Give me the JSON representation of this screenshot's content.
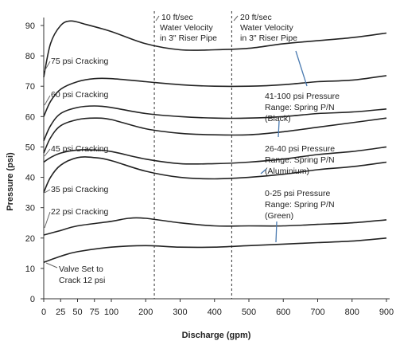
{
  "chart_data": {
    "type": "line",
    "xlabel": "Discharge (gpm)",
    "ylabel": "Pressure (psi)",
    "xlim": [
      0,
      900
    ],
    "ylim": [
      0,
      90
    ],
    "x_ticks": [
      0,
      25,
      50,
      75,
      100,
      200,
      300,
      400,
      500,
      600,
      700,
      800,
      900
    ],
    "y_ticks": [
      0,
      10,
      20,
      30,
      40,
      50,
      60,
      70,
      80,
      90
    ],
    "grid": false,
    "series": [
      {
        "name": "75 psi Cracking",
        "points": [
          [
            0,
            73
          ],
          [
            10,
            84
          ],
          [
            25,
            90
          ],
          [
            40,
            91.5
          ],
          [
            60,
            90.5
          ],
          [
            100,
            88
          ],
          [
            200,
            84
          ],
          [
            300,
            82
          ],
          [
            400,
            82
          ],
          [
            500,
            82.5
          ],
          [
            600,
            84
          ],
          [
            700,
            85
          ],
          [
            800,
            86
          ],
          [
            900,
            87.5
          ]
        ]
      },
      {
        "name": "60 psi Cracking",
        "points": [
          [
            0,
            60
          ],
          [
            10,
            65
          ],
          [
            25,
            69
          ],
          [
            50,
            71.5
          ],
          [
            75,
            72.5
          ],
          [
            100,
            72.5
          ],
          [
            200,
            71.5
          ],
          [
            300,
            70.5
          ],
          [
            400,
            70
          ],
          [
            500,
            70
          ],
          [
            600,
            70.5
          ],
          [
            700,
            71.5
          ],
          [
            800,
            72
          ],
          [
            900,
            73.5
          ]
        ]
      },
      {
        "name": "",
        "points": [
          [
            0,
            52
          ],
          [
            10,
            57
          ],
          [
            25,
            61
          ],
          [
            50,
            63
          ],
          [
            75,
            63.5
          ],
          [
            100,
            63
          ],
          [
            200,
            61
          ],
          [
            300,
            60
          ],
          [
            400,
            59.5
          ],
          [
            500,
            59.5
          ],
          [
            600,
            60
          ],
          [
            700,
            61
          ],
          [
            800,
            61.5
          ],
          [
            900,
            62.5
          ]
        ]
      },
      {
        "name": "",
        "points": [
          [
            0,
            48
          ],
          [
            10,
            53
          ],
          [
            25,
            57
          ],
          [
            50,
            59
          ],
          [
            75,
            59.5
          ],
          [
            100,
            59
          ],
          [
            200,
            56
          ],
          [
            300,
            54.5
          ],
          [
            400,
            54
          ],
          [
            500,
            54
          ],
          [
            600,
            55
          ],
          [
            700,
            56.5
          ],
          [
            800,
            58
          ],
          [
            900,
            59.5
          ]
        ]
      },
      {
        "name": "45 psi Cracking",
        "points": [
          [
            0,
            45
          ],
          [
            10,
            46.5
          ],
          [
            25,
            48
          ],
          [
            50,
            49
          ],
          [
            75,
            49
          ],
          [
            100,
            48.5
          ],
          [
            200,
            46
          ],
          [
            300,
            44.5
          ],
          [
            400,
            44.5
          ],
          [
            500,
            45
          ],
          [
            600,
            46
          ],
          [
            700,
            47.5
          ],
          [
            800,
            48.5
          ],
          [
            900,
            50
          ]
        ]
      },
      {
        "name": "35 psi Cracking",
        "points": [
          [
            0,
            35
          ],
          [
            10,
            40
          ],
          [
            25,
            44
          ],
          [
            50,
            46.5
          ],
          [
            75,
            46.5
          ],
          [
            100,
            45.5
          ],
          [
            200,
            42
          ],
          [
            300,
            40
          ],
          [
            400,
            39.5
          ],
          [
            500,
            40
          ],
          [
            600,
            41
          ],
          [
            700,
            42.5
          ],
          [
            800,
            43.5
          ],
          [
            900,
            45
          ]
        ]
      },
      {
        "name": "22 psi Cracking",
        "points": [
          [
            0,
            21
          ],
          [
            25,
            22.5
          ],
          [
            50,
            24
          ],
          [
            100,
            25.5
          ],
          [
            150,
            26.5
          ],
          [
            200,
            26.5
          ],
          [
            300,
            25
          ],
          [
            400,
            24
          ],
          [
            500,
            24
          ],
          [
            600,
            24
          ],
          [
            700,
            24.5
          ],
          [
            800,
            25
          ],
          [
            900,
            26
          ]
        ]
      },
      {
        "name": "Valve Set to Crack 12 psi",
        "points": [
          [
            0,
            12
          ],
          [
            25,
            14
          ],
          [
            50,
            15.5
          ],
          [
            100,
            17
          ],
          [
            200,
            17.5
          ],
          [
            300,
            17
          ],
          [
            400,
            17
          ],
          [
            500,
            17.5
          ],
          [
            600,
            18
          ],
          [
            700,
            18.5
          ],
          [
            800,
            19
          ],
          [
            900,
            20
          ]
        ]
      }
    ],
    "reference_lines": [
      {
        "x": 225,
        "label": "10 ft/sec Water Velocity in 3\" Riser Pipe"
      },
      {
        "x": 450,
        "label": "20 ft/sec Water Velocity in 3\" Riser Pipe"
      }
    ],
    "annotations": [
      "41-100 psi Pressure Range: Spring P/N (Black)",
      "26-40 psi Pressure Range: Spring P/N (Aluminium)",
      "0-25 psi Pressure Range: Spring P/N (Green)"
    ]
  },
  "labels": {
    "c75": "75 psi Cracking",
    "c60": "60  psi Cracking",
    "c45": "45  psi Cracking",
    "c35": "35  psi Cracking",
    "c22": "22  psi Cracking",
    "c12_line1": "Valve Set to",
    "c12_line2": "Crack 12 psi",
    "v10_line1": "10 ft/sec",
    "v10_line2": "Water Velocity",
    "v10_line3": "in 3\" Riser Pipe",
    "v20_line1": "20 ft/sec",
    "v20_line2": "Water Velocity",
    "v20_line3": "in 3\" Riser Pipe",
    "black_line1": "41-100 psi Pressure",
    "black_line2": "Range: Spring P/N",
    "black_line3": "(Black)",
    "alu_line1": "26-40 psi Pressure",
    "alu_line2": "Range: Spring P/N",
    "alu_line3": "(Aluminium)",
    "green_line1": "0-25 psi Pressure",
    "green_line2": "Range: Spring P/N",
    "green_line3": "(Green)"
  }
}
